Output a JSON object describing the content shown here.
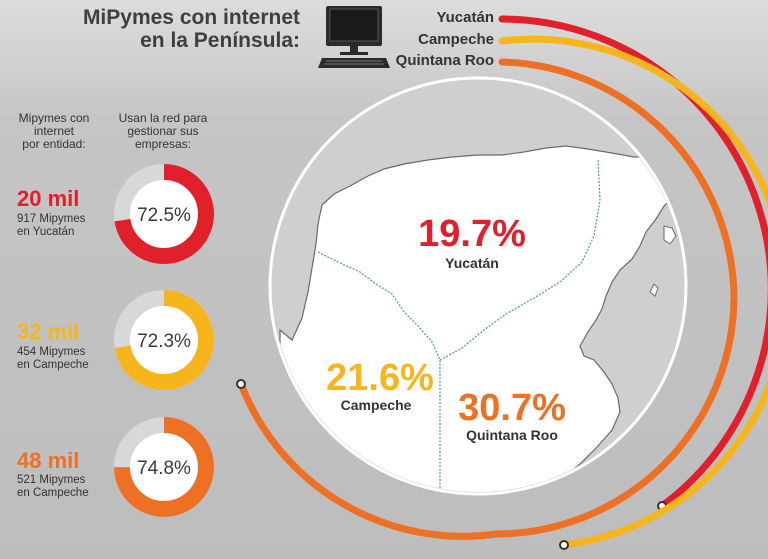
{
  "header": {
    "title_line1": "MiPymes con internet",
    "title_line2": "en la Península:"
  },
  "column_heads": {
    "left": [
      "Mipymes con",
      "internet",
      "por entidad:"
    ],
    "right": [
      "Usan la red para",
      "gestionar sus",
      "empresas:"
    ]
  },
  "colors": {
    "yucatan": "#e0202a",
    "campeche": "#f6b51c",
    "quintana_roo": "#ee7024",
    "donut_track": "#d8d8d8",
    "map_fill": "#ffffff",
    "border_blue": "#4a8fc4"
  },
  "icons": [
    "computer-icon"
  ],
  "chart_data": [
    {
      "type": "pie",
      "subtype": "donut-list",
      "categories": [
        "Yucatán",
        "Campeche",
        "Quintana Roo"
      ],
      "values": [
        72.5,
        72.3,
        74.8
      ],
      "value_labels": [
        "72.5%",
        "72.3%",
        "74.8%"
      ],
      "entity_counts": [
        "20 mil",
        "32 mil",
        "48 mil"
      ],
      "entity_notes": [
        [
          "917 Mipymes",
          "en Yucatán"
        ],
        [
          "454 Mipymes",
          "en Campeche"
        ],
        [
          "521 Mipymes",
          "en Campeche"
        ]
      ]
    },
    {
      "type": "bar",
      "subtype": "map-labels",
      "categories": [
        "Yucatán",
        "Campeche",
        "Quintana Roo"
      ],
      "values": [
        19.7,
        21.6,
        30.7
      ],
      "value_labels": [
        "19.7%",
        "21.6%",
        "30.7%"
      ]
    }
  ],
  "legend": [
    "Yucatán",
    "Campeche",
    "Quintana Roo"
  ]
}
